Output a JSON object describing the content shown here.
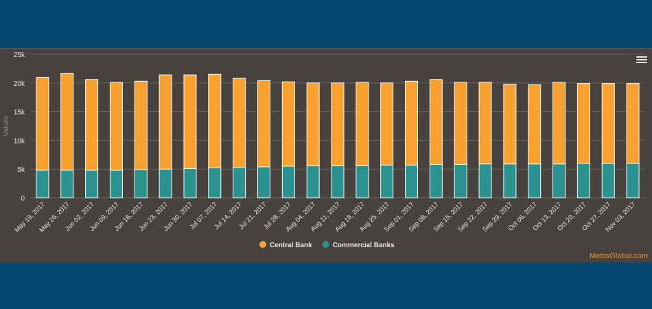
{
  "chart_data": {
    "type": "bar",
    "stacked": true,
    "categories": [
      "May 19, 2017",
      "May 26, 2017",
      "Jun 02, 2017",
      "Jun 09, 2017",
      "Jun 16, 2017",
      "Jun 23, 2017",
      "Jun 30, 2017",
      "Jul 07, 2017",
      "Jul 14, 2017",
      "Jul 21, 2017",
      "Jul 28, 2017",
      "Aug 04, 2017",
      "Aug 11, 2017",
      "Aug 18, 2017",
      "Aug 25, 2017",
      "Sep 01, 2017",
      "Sep 08, 2017",
      "Sep 15, 2017",
      "Sep 22, 2017",
      "Sep 29, 2017",
      "Oct 06, 2017",
      "Oct 13, 2017",
      "Oct 20, 2017",
      "Oct 27, 2017",
      "Nov 03, 2017"
    ],
    "series": [
      {
        "name": "Commercial Banks",
        "color": "#2a9390",
        "values": [
          4800,
          4800,
          4800,
          4800,
          4900,
          5000,
          5100,
          5200,
          5300,
          5400,
          5500,
          5600,
          5600,
          5600,
          5700,
          5700,
          5800,
          5800,
          5900,
          5900,
          5900,
          5900,
          6000,
          6000,
          6000
        ]
      },
      {
        "name": "Central Bank",
        "color": "#f9a12e",
        "values": [
          16200,
          16900,
          15800,
          15300,
          15400,
          16400,
          16300,
          16300,
          15500,
          15000,
          14700,
          14400,
          14400,
          14500,
          14300,
          14600,
          14800,
          14300,
          14200,
          13900,
          13800,
          14200,
          13900,
          13900,
          13900
        ]
      }
    ],
    "ylabel": "Values",
    "ylim": [
      0,
      25000
    ],
    "yticks": [
      "0",
      "5k",
      "10k",
      "15k",
      "20k",
      "25k"
    ],
    "grid": true,
    "legend_position": "bottom-center"
  },
  "watermark": "MettisGlobal.com"
}
